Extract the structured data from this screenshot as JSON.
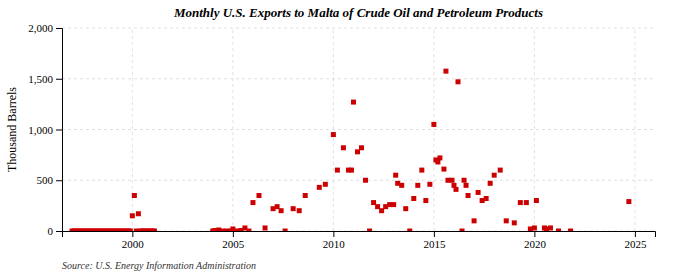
{
  "chart_data": {
    "type": "scatter",
    "title": "Monthly U.S. Exports to Malta of Crude Oil and Petroleum Products",
    "y_label": "Thousand Barrels",
    "annotations": [
      "Source: U.S. Energy Information Administration"
    ],
    "color": "#cc0000",
    "marker": "square",
    "grid": true,
    "xlim": [
      1996.5,
      2026
    ],
    "ylim": [
      0,
      2000
    ],
    "xticks": [
      2000,
      2005,
      2010,
      2015,
      2020,
      2025
    ],
    "yticks": [
      0,
      500,
      {
        "value": 1000,
        "label": "1,000"
      },
      {
        "value": 1500,
        "label": "1,500"
      },
      {
        "value": 2000,
        "label": "2,000"
      }
    ],
    "x": [
      1997.0,
      1997.1,
      1997.2,
      1997.3,
      1997.4,
      1997.5,
      1997.6,
      1997.7,
      1997.8,
      1997.9,
      1998.0,
      1998.1,
      1998.2,
      1998.3,
      1998.4,
      1998.5,
      1998.6,
      1998.7,
      1998.8,
      1998.9,
      1999.0,
      1999.1,
      1999.2,
      1999.3,
      1999.4,
      1999.5,
      1999.6,
      1999.7,
      1999.8,
      1999.9,
      2000.0,
      2000.1,
      2000.2,
      2000.3,
      2000.4,
      2000.5,
      2000.6,
      2000.7,
      2000.8,
      2000.9,
      2001.0,
      2001.1,
      2004.0,
      2004.1,
      2004.2,
      2004.3,
      2004.5,
      2004.7,
      2004.9,
      2005.0,
      2005.2,
      2005.4,
      2005.6,
      2005.8,
      2006.0,
      2006.3,
      2006.6,
      2007.0,
      2007.2,
      2007.4,
      2007.6,
      2008.0,
      2008.3,
      2008.6,
      2009.3,
      2009.6,
      2010.0,
      2010.2,
      2010.5,
      2010.75,
      2010.9,
      2011.0,
      2011.2,
      2011.4,
      2011.6,
      2011.8,
      2012.0,
      2012.2,
      2012.4,
      2012.6,
      2012.8,
      2013.0,
      2013.1,
      2013.2,
      2013.4,
      2013.6,
      2013.8,
      2014.0,
      2014.2,
      2014.4,
      2014.6,
      2014.8,
      2015.0,
      2015.1,
      2015.2,
      2015.3,
      2015.5,
      2015.6,
      2015.7,
      2015.9,
      2016.0,
      2016.1,
      2016.2,
      2016.4,
      2016.5,
      2016.6,
      2016.7,
      2017.0,
      2017.2,
      2017.4,
      2017.6,
      2017.8,
      2018.0,
      2018.3,
      2018.6,
      2019.0,
      2019.3,
      2019.6,
      2019.8,
      2020.0,
      2020.1,
      2020.5,
      2020.6,
      2020.8,
      2021.2,
      2021.8,
      2024.7
    ],
    "values": [
      0,
      0,
      0,
      0,
      0,
      0,
      0,
      0,
      0,
      0,
      0,
      0,
      0,
      0,
      0,
      0,
      0,
      0,
      0,
      0,
      0,
      0,
      0,
      0,
      0,
      0,
      0,
      0,
      0,
      0,
      150,
      350,
      0,
      170,
      0,
      0,
      0,
      0,
      0,
      0,
      0,
      0,
      0,
      5,
      0,
      10,
      0,
      0,
      0,
      20,
      0,
      5,
      30,
      0,
      280,
      350,
      30,
      220,
      240,
      200,
      0,
      220,
      200,
      350,
      430,
      460,
      950,
      600,
      820,
      600,
      600,
      1270,
      780,
      820,
      500,
      0,
      280,
      240,
      200,
      240,
      260,
      260,
      550,
      470,
      450,
      220,
      0,
      320,
      450,
      600,
      300,
      460,
      1050,
      700,
      680,
      720,
      610,
      1575,
      500,
      500,
      450,
      410,
      1470,
      0,
      500,
      450,
      350,
      100,
      380,
      300,
      320,
      470,
      550,
      600,
      100,
      80,
      280,
      280,
      20,
      30,
      300,
      30,
      20,
      30,
      0,
      0,
      290
    ]
  }
}
